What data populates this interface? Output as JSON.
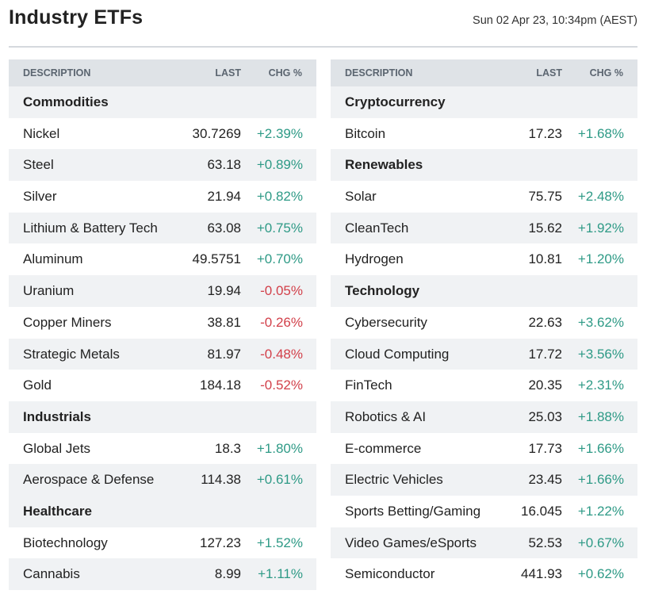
{
  "header": {
    "title": "Industry ETFs",
    "timestamp": "Sun 02 Apr 23, 10:34pm (AEST)"
  },
  "columns": {
    "description": "DESCRIPTION",
    "last": "LAST",
    "chg": "CHG %"
  },
  "colors": {
    "positive": "#2e9a86",
    "negative": "#d2404a",
    "header_bg": "#dfe3e7",
    "stripe_bg": "#f0f2f4"
  },
  "left_table": [
    {
      "type": "group",
      "label": "Commodities"
    },
    {
      "type": "row",
      "label": "Nickel",
      "last": "30.7269",
      "chg": "+2.39%",
      "dir": "pos"
    },
    {
      "type": "row",
      "label": "Steel",
      "last": "63.18",
      "chg": "+0.89%",
      "dir": "pos"
    },
    {
      "type": "row",
      "label": "Silver",
      "last": "21.94",
      "chg": "+0.82%",
      "dir": "pos"
    },
    {
      "type": "row",
      "label": "Lithium & Battery Tech",
      "last": "63.08",
      "chg": "+0.75%",
      "dir": "pos"
    },
    {
      "type": "row",
      "label": "Aluminum",
      "last": "49.5751",
      "chg": "+0.70%",
      "dir": "pos"
    },
    {
      "type": "row",
      "label": "Uranium",
      "last": "19.94",
      "chg": "-0.05%",
      "dir": "neg"
    },
    {
      "type": "row",
      "label": "Copper Miners",
      "last": "38.81",
      "chg": "-0.26%",
      "dir": "neg"
    },
    {
      "type": "row",
      "label": "Strategic Metals",
      "last": "81.97",
      "chg": "-0.48%",
      "dir": "neg"
    },
    {
      "type": "row",
      "label": "Gold",
      "last": "184.18",
      "chg": "-0.52%",
      "dir": "neg"
    },
    {
      "type": "group",
      "label": "Industrials"
    },
    {
      "type": "row",
      "label": "Global Jets",
      "last": "18.3",
      "chg": "+1.80%",
      "dir": "pos"
    },
    {
      "type": "row",
      "label": "Aerospace & Defense",
      "last": "114.38",
      "chg": "+0.61%",
      "dir": "pos"
    },
    {
      "type": "group",
      "label": "Healthcare"
    },
    {
      "type": "row",
      "label": "Biotechnology",
      "last": "127.23",
      "chg": "+1.52%",
      "dir": "pos"
    },
    {
      "type": "row",
      "label": "Cannabis",
      "last": "8.99",
      "chg": "+1.11%",
      "dir": "pos"
    }
  ],
  "right_table": [
    {
      "type": "group",
      "label": "Cryptocurrency"
    },
    {
      "type": "row",
      "label": "Bitcoin",
      "last": "17.23",
      "chg": "+1.68%",
      "dir": "pos"
    },
    {
      "type": "group",
      "label": "Renewables"
    },
    {
      "type": "row",
      "label": "Solar",
      "last": "75.75",
      "chg": "+2.48%",
      "dir": "pos"
    },
    {
      "type": "row",
      "label": "CleanTech",
      "last": "15.62",
      "chg": "+1.92%",
      "dir": "pos"
    },
    {
      "type": "row",
      "label": "Hydrogen",
      "last": "10.81",
      "chg": "+1.20%",
      "dir": "pos"
    },
    {
      "type": "group",
      "label": "Technology"
    },
    {
      "type": "row",
      "label": "Cybersecurity",
      "last": "22.63",
      "chg": "+3.62%",
      "dir": "pos"
    },
    {
      "type": "row",
      "label": "Cloud Computing",
      "last": "17.72",
      "chg": "+3.56%",
      "dir": "pos"
    },
    {
      "type": "row",
      "label": "FinTech",
      "last": "20.35",
      "chg": "+2.31%",
      "dir": "pos"
    },
    {
      "type": "row",
      "label": "Robotics & AI",
      "last": "25.03",
      "chg": "+1.88%",
      "dir": "pos"
    },
    {
      "type": "row",
      "label": "E-commerce",
      "last": "17.73",
      "chg": "+1.66%",
      "dir": "pos"
    },
    {
      "type": "row",
      "label": "Electric Vehicles",
      "last": "23.45",
      "chg": "+1.66%",
      "dir": "pos"
    },
    {
      "type": "row",
      "label": "Sports Betting/Gaming",
      "last": "16.045",
      "chg": "+1.22%",
      "dir": "pos"
    },
    {
      "type": "row",
      "label": "Video Games/eSports",
      "last": "52.53",
      "chg": "+0.67%",
      "dir": "pos"
    },
    {
      "type": "row",
      "label": "Semiconductor",
      "last": "441.93",
      "chg": "+0.62%",
      "dir": "pos"
    }
  ]
}
